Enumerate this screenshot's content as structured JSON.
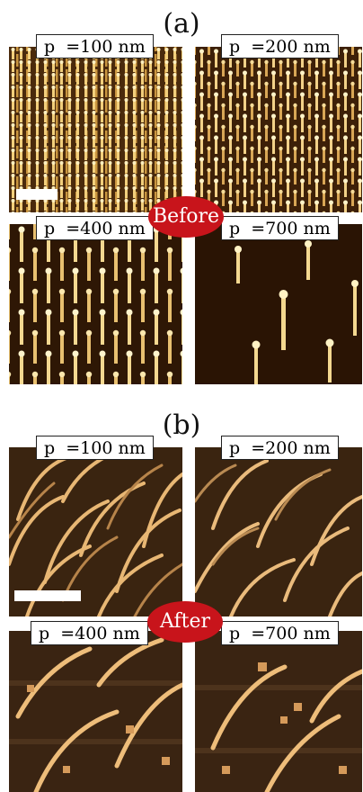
{
  "figure": {
    "top": {
      "label": "(a)",
      "badge": "Before",
      "panels": [
        {
          "label": "p  =100 nm"
        },
        {
          "label": "p  =200 nm"
        },
        {
          "label": "p  =400 nm"
        },
        {
          "label": "p  =700 nm"
        }
      ]
    },
    "bottom": {
      "label": "(b)",
      "badge": "After",
      "panels": [
        {
          "label": "p  =100 nm"
        },
        {
          "label": "p  =200 nm"
        },
        {
          "label": "p  =400 nm"
        },
        {
          "label": "p  =700 nm"
        }
      ]
    }
  },
  "colors": {
    "before_background": "#3a1f08",
    "before_pillar": "#f4d68a",
    "after_background": "#2c1a0c",
    "after_pillar": "#e8b774",
    "badge": "#c8141b"
  }
}
